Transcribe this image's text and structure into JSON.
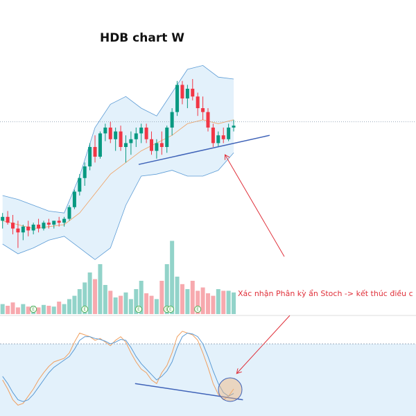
{
  "chart_data": [
    {
      "type": "candlestick",
      "title": "HDB chart W",
      "open": [
        22,
        24,
        21,
        18,
        16,
        19,
        17,
        20,
        18,
        21,
        20,
        22,
        21,
        23,
        29,
        37,
        44,
        50,
        60,
        55,
        67,
        70,
        64,
        68,
        60,
        62,
        64,
        67,
        70,
        64,
        58,
        62,
        60,
        70,
        78,
        92,
        85,
        90,
        86,
        80,
        78,
        70,
        62,
        66,
        64,
        70
      ],
      "high": [
        26,
        27,
        25,
        22,
        20,
        22,
        21,
        23,
        22,
        23,
        22,
        24,
        24,
        30,
        38,
        46,
        52,
        62,
        66,
        68,
        72,
        73,
        70,
        71,
        66,
        68,
        70,
        72,
        72,
        68,
        64,
        68,
        71,
        80,
        94,
        94,
        92,
        95,
        88,
        86,
        80,
        72,
        68,
        70,
        72,
        74
      ],
      "low": [
        18,
        20,
        15,
        8,
        12,
        14,
        15,
        16,
        17,
        18,
        18,
        19,
        19,
        22,
        28,
        35,
        40,
        48,
        52,
        54,
        63,
        62,
        58,
        58,
        52,
        56,
        60,
        62,
        62,
        56,
        54,
        56,
        57,
        66,
        76,
        82,
        80,
        84,
        76,
        74,
        68,
        60,
        60,
        62,
        63,
        68
      ],
      "close": [
        24,
        21,
        18,
        16,
        19,
        17,
        20,
        18,
        21,
        20,
        22,
        21,
        23,
        29,
        37,
        44,
        50,
        60,
        55,
        67,
        70,
        64,
        68,
        60,
        62,
        64,
        67,
        70,
        64,
        58,
        62,
        60,
        70,
        78,
        92,
        85,
        90,
        86,
        80,
        78,
        70,
        62,
        66,
        64,
        70,
        71
      ],
      "up_color": "#089981",
      "down_color": "#f23645",
      "xlim": [
        -0.5,
        80.5
      ],
      "ylim": [
        0,
        100
      ],
      "bollinger": {
        "x": [
          0,
          3,
          6,
          9,
          12,
          15,
          18,
          21,
          24,
          27,
          30,
          33,
          36,
          39,
          42,
          45
        ],
        "upper": [
          35,
          33,
          30,
          27,
          26,
          45,
          70,
          82,
          86,
          80,
          76,
          88,
          100,
          102,
          96,
          95
        ],
        "middle": [
          22,
          20,
          18,
          19,
          20,
          26,
          36,
          46,
          52,
          58,
          62,
          66,
          72,
          74,
          72,
          74
        ],
        "lower": [
          10,
          5,
          8,
          12,
          14,
          8,
          2,
          8,
          30,
          45,
          46,
          48,
          45,
          45,
          48,
          57
        ],
        "color": "#5b9bd5",
        "middle_color": "#f0a060",
        "fill": "#e3f1fb"
      },
      "hline": 73,
      "trendline": {
        "x": [
          26.5,
          52
        ],
        "values": [
          51,
          66
        ],
        "color": "#3f63b8"
      },
      "annotation": "Xác nhận Phân kỳ ẩn Stoch -> kết thúc điều c",
      "annotation_color": "#e0303a"
    },
    {
      "type": "bar",
      "values": [
        12,
        10,
        14,
        8,
        12,
        9,
        10,
        8,
        11,
        10,
        9,
        15,
        12,
        18,
        22,
        30,
        38,
        50,
        42,
        60,
        35,
        28,
        20,
        22,
        26,
        18,
        30,
        40,
        25,
        22,
        18,
        40,
        60,
        88,
        45,
        36,
        30,
        40,
        28,
        32,
        25,
        22,
        30,
        28,
        28,
        26
      ],
      "ylim": [
        0,
        100
      ],
      "up_color": "#92d3c9",
      "down_color": "#f7a9ae",
      "events": {
        "x": [
          6,
          16,
          26.5,
          32,
          32.7,
          38
        ],
        "labels": [
          "E",
          "E",
          "E",
          "E",
          "E",
          "E"
        ],
        "color": "#4caf50"
      }
    },
    {
      "type": "line",
      "ylim": [
        0,
        100
      ],
      "band": [
        0,
        80
      ],
      "band_color": "#e3f1fb",
      "series": [
        {
          "color": "#f0a060",
          "values": [
            40,
            30,
            18,
            12,
            14,
            22,
            30,
            40,
            48,
            55,
            60,
            62,
            64,
            70,
            82,
            92,
            90,
            88,
            84,
            86,
            82,
            78,
            84,
            88,
            82,
            70,
            60,
            52,
            48,
            40,
            36,
            48,
            56,
            70,
            88,
            94,
            92,
            90,
            84,
            70,
            54,
            36,
            24,
            18,
            22,
            30
          ]
        },
        {
          "color": "#5b9bd5",
          "values": [
            44,
            36,
            26,
            18,
            16,
            18,
            24,
            32,
            40,
            48,
            54,
            58,
            62,
            66,
            74,
            84,
            88,
            88,
            86,
            85,
            83,
            80,
            82,
            85,
            84,
            76,
            66,
            58,
            52,
            46,
            40,
            44,
            50,
            60,
            76,
            88,
            92,
            91,
            88,
            80,
            66,
            50,
            36,
            26,
            22,
            25
          ]
        }
      ],
      "trendline": {
        "x": [
          25.8,
          46.8
        ],
        "values": [
          36,
          18
        ],
        "color": "#3f63b8"
      }
    }
  ]
}
